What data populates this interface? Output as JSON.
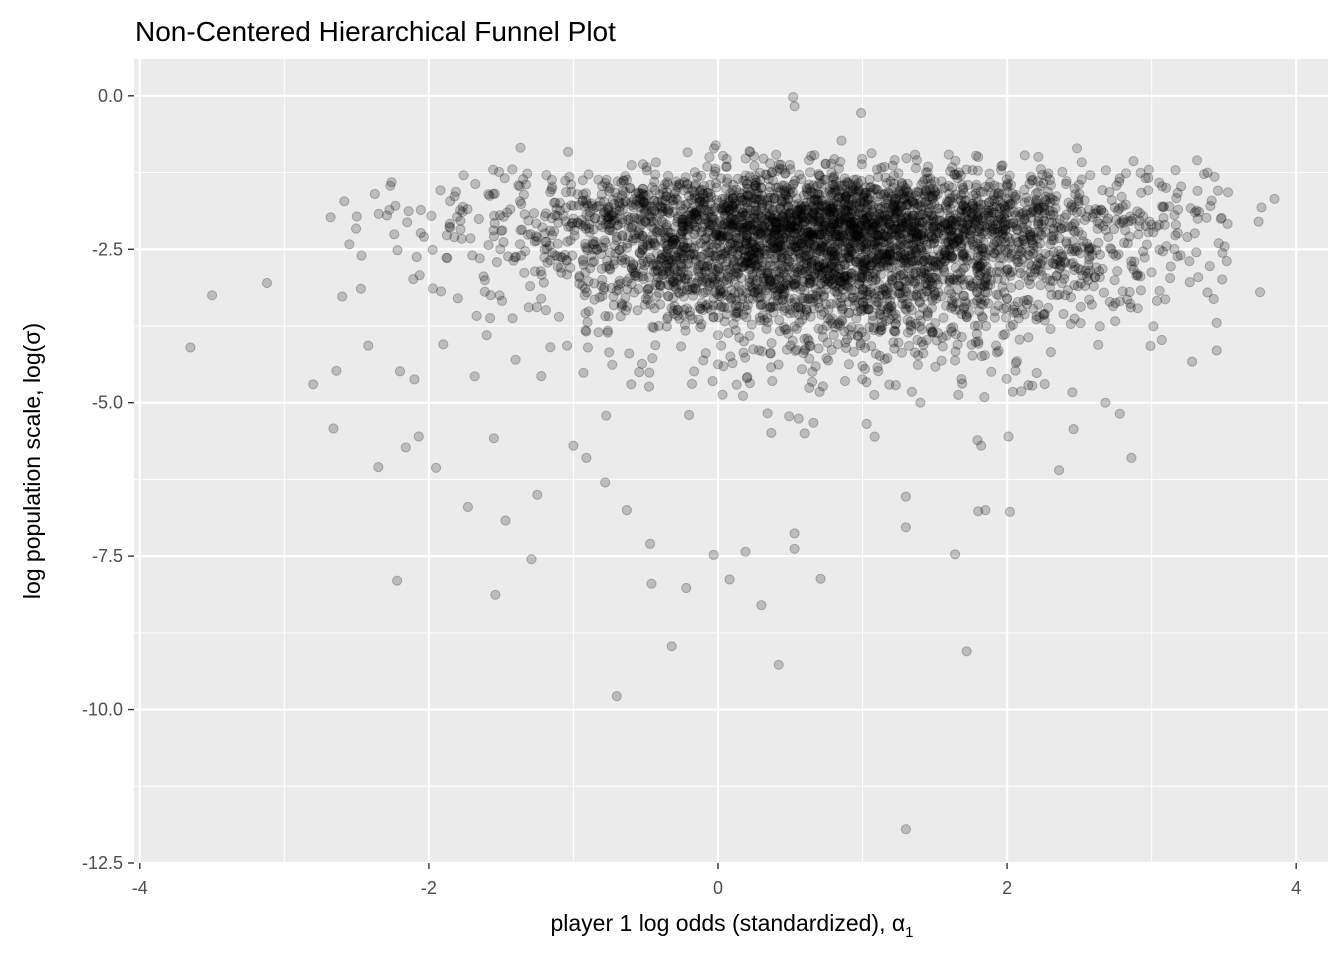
{
  "chart_data": {
    "type": "scatter",
    "title": "Non-Centered Hierarchical Funnel Plot",
    "xlabel": "player 1 log odds (standardized), ",
    "xlabel_symbol": "α",
    "xlabel_subscript": "1",
    "ylabel": "log population scale, log(σ)",
    "xlim": [
      -4.04,
      4.22
    ],
    "ylim": [
      -12.5,
      0.6
    ],
    "x_ticks": [
      -4,
      -2,
      0,
      2,
      4
    ],
    "x_tick_labels": [
      "-4",
      "-2",
      "0",
      "2",
      "4"
    ],
    "y_ticks": [
      0,
      -2.5,
      -5,
      -7.5,
      -10,
      -12.5
    ],
    "y_tick_labels": [
      "0.0",
      "-2.5",
      "-5.0",
      "-7.5",
      "-10.0",
      "-12.5"
    ],
    "grid": true,
    "legend": "none",
    "colors": {
      "panel_background": "#EBEBEB",
      "grid_major": "#FFFFFF",
      "point": "#000000",
      "point_alpha": 0.2
    },
    "points": [
      [
        -3.65,
        -4.1
      ],
      [
        -3.5,
        -3.25
      ],
      [
        -3.12,
        -3.05
      ],
      [
        -2.8,
        -4.7
      ],
      [
        -2.68,
        -1.98
      ],
      [
        -2.66,
        -5.42
      ],
      [
        -2.64,
        -4.48
      ],
      [
        -2.6,
        -3.27
      ],
      [
        -2.55,
        -2.42
      ],
      [
        -2.42,
        -4.07
      ],
      [
        -2.35,
        -6.05
      ],
      [
        -2.29,
        -1.95
      ],
      [
        -2.22,
        -7.9
      ],
      [
        -2.2,
        -4.49
      ],
      [
        -2.16,
        -5.73
      ],
      [
        -2.15,
        -2.06
      ],
      [
        -2.14,
        -1.88
      ],
      [
        -2.1,
        -4.62
      ],
      [
        -2.07,
        -5.55
      ],
      [
        -1.95,
        -6.06
      ],
      [
        -1.92,
        -1.54
      ],
      [
        -1.9,
        -4.05
      ],
      [
        -1.73,
        -6.7
      ],
      [
        -1.55,
        -5.58
      ],
      [
        -1.54,
        -8.13
      ],
      [
        -1.47,
        -6.92
      ],
      [
        -1.29,
        -7.55
      ],
      [
        -1.25,
        -6.5
      ],
      [
        -1.0,
        -5.7
      ],
      [
        -0.91,
        -5.9
      ],
      [
        -0.78,
        -6.3
      ],
      [
        -0.7,
        -9.78
      ],
      [
        -0.63,
        -6.75
      ],
      [
        -0.47,
        -7.3
      ],
      [
        -0.46,
        -7.95
      ],
      [
        -0.32,
        -8.97
      ],
      [
        -0.22,
        -8.02
      ],
      [
        -0.03,
        -7.48
      ],
      [
        0.08,
        -7.88
      ],
      [
        0.19,
        -7.43
      ],
      [
        0.3,
        -8.3
      ],
      [
        0.42,
        -9.27
      ],
      [
        0.53,
        -7.13
      ],
      [
        0.53,
        -7.38
      ],
      [
        0.71,
        -7.87
      ],
      [
        0.52,
        -0.02
      ],
      [
        0.53,
        -0.17
      ],
      [
        0.99,
        -0.28
      ],
      [
        1.3,
        -11.95
      ],
      [
        1.3,
        -6.53
      ],
      [
        1.3,
        -7.03
      ],
      [
        1.64,
        -7.47
      ],
      [
        1.72,
        -9.05
      ],
      [
        1.8,
        -6.77
      ],
      [
        1.85,
        -6.75
      ],
      [
        2.02,
        -6.78
      ],
      [
        2.01,
        -5.55
      ],
      [
        2.36,
        -6.1
      ],
      [
        2.46,
        -5.43
      ],
      [
        2.68,
        -5.0
      ],
      [
        2.78,
        -5.18
      ],
      [
        2.86,
        -5.9
      ],
      [
        3.28,
        -4.33
      ],
      [
        3.45,
        -4.15
      ],
      [
        3.45,
        -3.7
      ],
      [
        3.49,
        -2.56
      ],
      [
        3.75,
        -3.2
      ],
      [
        3.74,
        -2.05
      ],
      [
        3.76,
        -1.82
      ],
      [
        3.85,
        -1.68
      ],
      [
        -1.8,
        -3.3
      ],
      [
        -1.7,
        -2.6
      ],
      [
        -1.6,
        -3.9
      ],
      [
        -1.5,
        -2.2
      ],
      [
        -1.4,
        -4.3
      ],
      [
        -1.3,
        -3.1
      ],
      [
        -1.2,
        -2.5
      ],
      [
        -1.1,
        -3.6
      ],
      [
        -1.0,
        -2.0
      ],
      [
        -0.9,
        -4.1
      ],
      [
        -0.8,
        -3.0
      ],
      [
        -0.7,
        -2.3
      ],
      [
        -0.6,
        -4.7
      ],
      [
        -0.5,
        -1.9
      ],
      [
        -0.4,
        -3.4
      ],
      [
        -0.3,
        -2.8
      ],
      [
        -0.2,
        -5.2
      ],
      [
        -0.1,
        -1.6
      ],
      [
        0.0,
        -3.9
      ],
      [
        0.1,
        -2.4
      ],
      [
        0.2,
        -4.6
      ],
      [
        0.3,
        -1.5
      ],
      [
        0.4,
        -3.2
      ],
      [
        0.5,
        -2.1
      ],
      [
        0.6,
        -5.5
      ],
      [
        0.7,
        -1.3
      ],
      [
        0.8,
        -2.9
      ],
      [
        0.9,
        -1.8
      ],
      [
        1.0,
        -4.4
      ],
      [
        1.1,
        -1.2
      ],
      [
        1.2,
        -3.5
      ],
      [
        1.3,
        -2.0
      ],
      [
        1.4,
        -5.0
      ],
      [
        1.5,
        -1.4
      ],
      [
        1.6,
        -3.0
      ],
      [
        1.7,
        -2.2
      ],
      [
        1.8,
        -4.0
      ],
      [
        1.9,
        -1.7
      ],
      [
        2.0,
        -3.3
      ],
      [
        2.1,
        -2.5
      ],
      [
        2.2,
        -1.9
      ],
      [
        2.3,
        -3.8
      ],
      [
        2.4,
        -2.7
      ],
      [
        2.5,
        -1.6
      ],
      [
        2.6,
        -3.1
      ],
      [
        2.7,
        -2.3
      ],
      [
        2.8,
        -1.8
      ],
      [
        2.9,
        -2.9
      ],
      [
        3.0,
        -2.1
      ],
      [
        3.1,
        -1.5
      ],
      [
        3.2,
        -2.6
      ],
      [
        3.3,
        -1.9
      ]
    ],
    "density_note": "Several thousand semi-transparent points concentrated around x = 0 to 2, y = -1 to -2.5; the cloud widens into a funnel toward lower log(σ)."
  }
}
